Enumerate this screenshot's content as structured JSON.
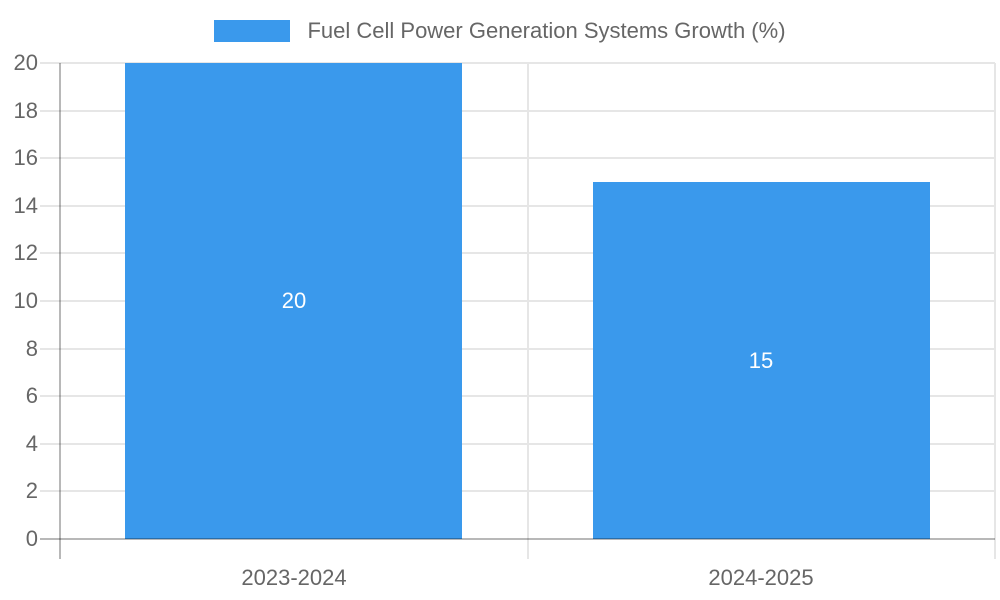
{
  "chart_data": {
    "type": "bar",
    "title": "Fuel Cell Power Generation Systems Growth (%)",
    "categories": [
      "2023-2024",
      "2024-2025"
    ],
    "values": [
      20,
      15
    ],
    "value_labels": [
      "20",
      "15"
    ],
    "yticks": [
      0,
      2,
      4,
      6,
      8,
      10,
      12,
      14,
      16,
      18,
      20
    ],
    "ylim": [
      0,
      20
    ],
    "xlabel": "",
    "ylabel": "",
    "grid": true,
    "legend_position": "top-center",
    "legend_entries": [
      "Fuel Cell Power Generation Systems Growth (%)"
    ],
    "colors": {
      "bar": "#3a99ec",
      "grid": "#e6e6e6",
      "axis": "#b0b0b0",
      "tick_text": "#666666",
      "legend_text": "#666666",
      "value_text": "#ffffff"
    }
  }
}
